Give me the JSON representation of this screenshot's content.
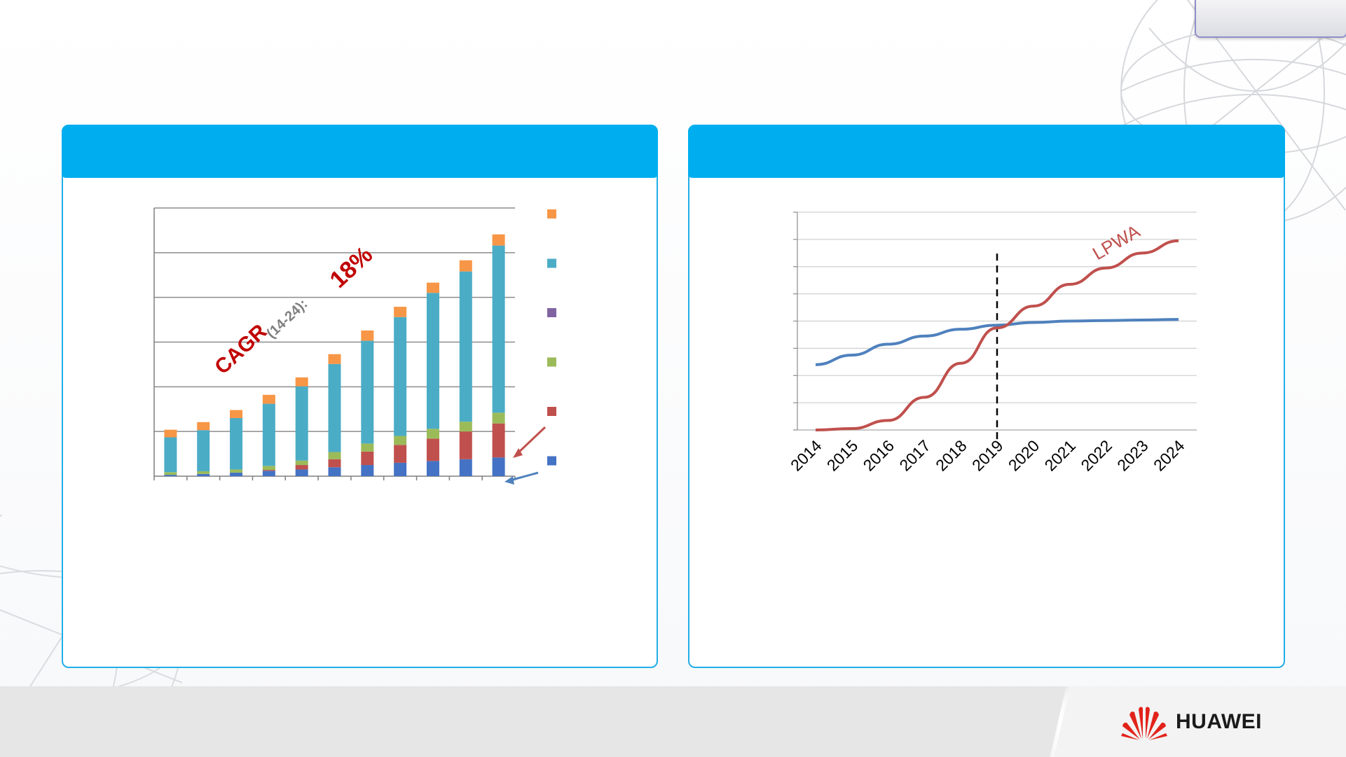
{
  "brand": {
    "name": "HUAWEI",
    "accent": "#e2231a"
  },
  "colors": {
    "panel_header": "#00aeef",
    "panel_border": "#21aee8"
  },
  "left_chart": {
    "annotation": {
      "cagr": "CAGR",
      "period": "(14-24):",
      "value": "18%"
    }
  },
  "chart_data": [
    {
      "type": "bar",
      "stacked": true,
      "categories": [
        "",
        "",
        "",
        "",
        "",
        "",
        "",
        "",
        "",
        "",
        ""
      ],
      "ylim": [
        0,
        6
      ],
      "grid": true,
      "series": [
        {
          "color": "#4472c4",
          "values": [
            0.03,
            0.05,
            0.08,
            0.12,
            0.15,
            0.2,
            0.25,
            0.3,
            0.34,
            0.38,
            0.42
          ]
        },
        {
          "color": "#c0504d",
          "values": [
            0.0,
            0.0,
            0.0,
            0.02,
            0.1,
            0.18,
            0.3,
            0.4,
            0.5,
            0.62,
            0.76
          ]
        },
        {
          "color": "#9bbb59",
          "values": [
            0.06,
            0.06,
            0.07,
            0.09,
            0.1,
            0.16,
            0.18,
            0.2,
            0.22,
            0.22,
            0.24
          ]
        },
        {
          "color": "#8064a2",
          "values": [
            0.0,
            0.0,
            0.0,
            0.0,
            0.0,
            0.0,
            0.0,
            0.0,
            0.0,
            0.0,
            0.0
          ]
        },
        {
          "color": "#4bacc6",
          "values": [
            0.78,
            0.92,
            1.15,
            1.39,
            1.66,
            1.97,
            2.3,
            2.66,
            3.04,
            3.36,
            3.74
          ]
        },
        {
          "color": "#f79646",
          "values": [
            0.17,
            0.18,
            0.18,
            0.2,
            0.2,
            0.22,
            0.23,
            0.23,
            0.23,
            0.25,
            0.25
          ]
        }
      ],
      "legend": "right"
    },
    {
      "type": "line",
      "x": [
        "2014",
        "2015",
        "2016",
        "2017",
        "2018",
        "2019",
        "2020",
        "2021",
        "2022",
        "2023",
        "2024"
      ],
      "ylim": [
        0,
        8
      ],
      "grid": true,
      "marker_line_at": "2019",
      "series": [
        {
          "color": "#4f81bd",
          "values": [
            2.4,
            2.75,
            3.15,
            3.45,
            3.7,
            3.85,
            3.95,
            4.0,
            4.02,
            4.04,
            4.06
          ]
        },
        {
          "name": "LPWA",
          "color": "#c0504d",
          "values": [
            0.0,
            0.05,
            0.35,
            1.2,
            2.45,
            3.75,
            4.55,
            5.35,
            5.95,
            6.5,
            6.95
          ]
        }
      ]
    }
  ]
}
